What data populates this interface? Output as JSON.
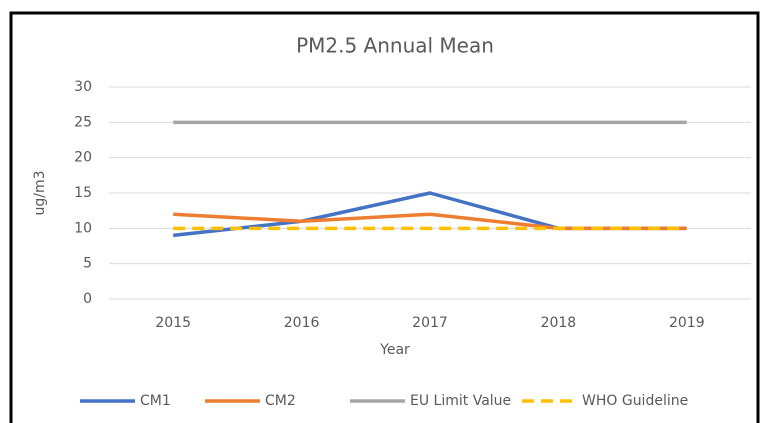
{
  "chart_data": {
    "type": "line",
    "title": "PM2.5 Annual Mean",
    "x_label": "Year",
    "y_label": "ug/m3",
    "categories": [
      "2015",
      "2016",
      "2017",
      "2018",
      "2019"
    ],
    "series": [
      {
        "name": "CM1",
        "color": "#4472c4",
        "values": [
          9,
          11,
          15,
          10,
          10
        ]
      },
      {
        "name": "CM2",
        "color": "#ed7d31",
        "values": [
          12,
          11,
          12,
          10,
          10
        ]
      },
      {
        "name": "EU Limit Value",
        "color": "#a5a5a5",
        "values": [
          25,
          25,
          25,
          25,
          25
        ]
      },
      {
        "name": "WHO Guideline",
        "color": "#ffc000",
        "values": [
          10,
          10,
          10,
          10,
          10
        ],
        "dashed": true
      }
    ],
    "ylim": [
      0,
      30
    ],
    "yticks": [
      0,
      5,
      10,
      15,
      20,
      25,
      30
    ],
    "grid": true,
    "legend": "bottom"
  }
}
